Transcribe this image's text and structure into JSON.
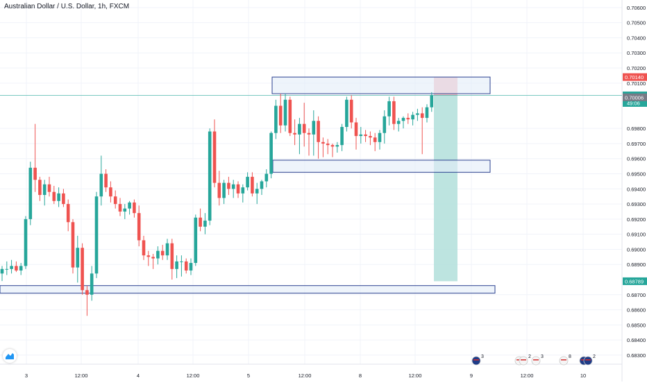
{
  "header": {
    "title": "Australian Dollar / U.S. Dollar, 1h, FXCM"
  },
  "colors": {
    "up": "#26a69a",
    "down": "#ef5350",
    "zone_fill": "#e3ecf9",
    "zone_stroke": "#2a3f8f",
    "target_fill": "#b2dfdb",
    "stop_fill": "#f4b6bb",
    "current_price_line": "#26a69a",
    "axis_text": "#131722"
  },
  "chart_data": {
    "type": "candlestick",
    "symbol": "AUDUSD",
    "interval": "1h",
    "x_tick_labels": [
      "3",
      "12:00",
      "4",
      "12:00",
      "5",
      "12:00",
      "8",
      "12:00",
      "9",
      "12:00",
      "10"
    ],
    "y_ticks": [
      "0.70600",
      "0.70500",
      "0.70400",
      "0.70300",
      "0.70200",
      "0.70100",
      "0.69800",
      "0.69700",
      "0.69600",
      "0.69500",
      "0.69400",
      "0.69300",
      "0.69200",
      "0.69100",
      "0.69000",
      "0.68900",
      "0.68700",
      "0.68600",
      "0.68500",
      "0.68400",
      "0.68300"
    ],
    "ylim": [
      0.6824,
      0.7065
    ],
    "price_labels": [
      {
        "value": 0.7014,
        "text": "0.70140",
        "color": "#ef5350"
      },
      {
        "value": 0.70019,
        "text": "0.70019",
        "color": "#26a69a",
        "sub": "49:06"
      },
      {
        "value": 0.70006,
        "text": "0.70006",
        "color": "#787b86"
      },
      {
        "value": 0.68789,
        "text": "0.68789",
        "color": "#26a69a"
      }
    ],
    "candles": [
      [
        0.6884,
        0.6889,
        0.6879,
        0.6887
      ],
      [
        0.6887,
        0.6892,
        0.6883,
        0.6887
      ],
      [
        0.6887,
        0.6893,
        0.6884,
        0.6889
      ],
      [
        0.6889,
        0.6892,
        0.6885,
        0.6886
      ],
      [
        0.6886,
        0.6891,
        0.6883,
        0.6889
      ],
      [
        0.6889,
        0.6922,
        0.6887,
        0.692
      ],
      [
        0.692,
        0.6958,
        0.6916,
        0.6954
      ],
      [
        0.6954,
        0.6983,
        0.6938,
        0.6946
      ],
      [
        0.6946,
        0.6948,
        0.6932,
        0.6936
      ],
      [
        0.6936,
        0.6946,
        0.6929,
        0.6943
      ],
      [
        0.6943,
        0.6948,
        0.6935,
        0.6938
      ],
      [
        0.6938,
        0.6942,
        0.693,
        0.6932
      ],
      [
        0.6932,
        0.6941,
        0.6928,
        0.6937
      ],
      [
        0.6937,
        0.694,
        0.6928,
        0.693
      ],
      [
        0.693,
        0.6933,
        0.6912,
        0.6918
      ],
      [
        0.6918,
        0.692,
        0.6884,
        0.6888
      ],
      [
        0.6888,
        0.6909,
        0.6878,
        0.6901
      ],
      [
        0.6901,
        0.6904,
        0.687,
        0.6873
      ],
      [
        0.6873,
        0.6876,
        0.6856,
        0.687
      ],
      [
        0.687,
        0.6889,
        0.6866,
        0.6884
      ],
      [
        0.6884,
        0.6938,
        0.6881,
        0.6935
      ],
      [
        0.6935,
        0.6962,
        0.6929,
        0.695
      ],
      [
        0.695,
        0.6953,
        0.6938,
        0.6941
      ],
      [
        0.6941,
        0.6945,
        0.6931,
        0.6935
      ],
      [
        0.6935,
        0.6939,
        0.6927,
        0.693
      ],
      [
        0.693,
        0.6934,
        0.6922,
        0.6925
      ],
      [
        0.6925,
        0.693,
        0.692,
        0.6927
      ],
      [
        0.6927,
        0.6932,
        0.6923,
        0.6931
      ],
      [
        0.6931,
        0.6933,
        0.6921,
        0.6924
      ],
      [
        0.6924,
        0.6929,
        0.6902,
        0.6906
      ],
      [
        0.6906,
        0.6909,
        0.6893,
        0.6896
      ],
      [
        0.6896,
        0.6899,
        0.6889,
        0.6895
      ],
      [
        0.6895,
        0.6897,
        0.6887,
        0.6894
      ],
      [
        0.6894,
        0.6902,
        0.689,
        0.6899
      ],
      [
        0.6899,
        0.6903,
        0.6893,
        0.6896
      ],
      [
        0.6896,
        0.6907,
        0.6893,
        0.6904
      ],
      [
        0.6904,
        0.6907,
        0.688,
        0.6887
      ],
      [
        0.6887,
        0.6896,
        0.6881,
        0.6892
      ],
      [
        0.6892,
        0.6896,
        0.6882,
        0.6892
      ],
      [
        0.6892,
        0.6894,
        0.6884,
        0.6886
      ],
      [
        0.6886,
        0.6894,
        0.6883,
        0.6891
      ],
      [
        0.6891,
        0.6923,
        0.6889,
        0.6921
      ],
      [
        0.6921,
        0.6927,
        0.6912,
        0.6915
      ],
      [
        0.6915,
        0.6924,
        0.691,
        0.6919
      ],
      [
        0.6919,
        0.698,
        0.6916,
        0.6978
      ],
      [
        0.6978,
        0.6986,
        0.6941,
        0.6944
      ],
      [
        0.6944,
        0.6952,
        0.6929,
        0.6934
      ],
      [
        0.6934,
        0.6946,
        0.693,
        0.6944
      ],
      [
        0.6944,
        0.6948,
        0.6936,
        0.694
      ],
      [
        0.694,
        0.6946,
        0.6934,
        0.6943
      ],
      [
        0.6943,
        0.6945,
        0.6934,
        0.6937
      ],
      [
        0.6937,
        0.6943,
        0.6931,
        0.6941
      ],
      [
        0.6941,
        0.6951,
        0.6939,
        0.6948
      ],
      [
        0.6948,
        0.6951,
        0.6935,
        0.6937
      ],
      [
        0.6937,
        0.6944,
        0.693,
        0.694
      ],
      [
        0.694,
        0.6946,
        0.6936,
        0.6945
      ],
      [
        0.6945,
        0.6953,
        0.6941,
        0.695
      ],
      [
        0.695,
        0.6978,
        0.6947,
        0.6977
      ],
      [
        0.6977,
        0.6999,
        0.6973,
        0.6995
      ],
      [
        0.6995,
        0.7003,
        0.6977,
        0.6982
      ],
      [
        0.6982,
        0.7003,
        0.6978,
        0.6999
      ],
      [
        0.6999,
        0.7001,
        0.6975,
        0.6977
      ],
      [
        0.6977,
        0.6986,
        0.6969,
        0.6976
      ],
      [
        0.6976,
        0.6987,
        0.6963,
        0.6983
      ],
      [
        0.6983,
        0.6997,
        0.6968,
        0.6977
      ],
      [
        0.6977,
        0.698,
        0.6962,
        0.6976
      ],
      [
        0.6976,
        0.6992,
        0.6962,
        0.6985
      ],
      [
        0.6985,
        0.6988,
        0.696,
        0.6971
      ],
      [
        0.6971,
        0.6974,
        0.6961,
        0.697
      ],
      [
        0.697,
        0.6973,
        0.6963,
        0.6969
      ],
      [
        0.6969,
        0.697,
        0.6961,
        0.6968
      ],
      [
        0.6968,
        0.6971,
        0.6964,
        0.6969
      ],
      [
        0.6969,
        0.6983,
        0.6965,
        0.6981
      ],
      [
        0.6981,
        0.7001,
        0.6978,
        0.6999
      ],
      [
        0.6999,
        0.7002,
        0.698,
        0.6984
      ],
      [
        0.6984,
        0.6987,
        0.6966,
        0.6975
      ],
      [
        0.6975,
        0.6981,
        0.697,
        0.6976
      ],
      [
        0.6976,
        0.6979,
        0.6971,
        0.6975
      ],
      [
        0.6975,
        0.6978,
        0.6969,
        0.6974
      ],
      [
        0.6974,
        0.6977,
        0.6965,
        0.6971
      ],
      [
        0.6971,
        0.6979,
        0.6966,
        0.6977
      ],
      [
        0.6977,
        0.6992,
        0.697,
        0.6988
      ],
      [
        0.6988,
        0.7001,
        0.6982,
        0.6998
      ],
      [
        0.6998,
        0.7001,
        0.6979,
        0.6983
      ],
      [
        0.6983,
        0.6987,
        0.6978,
        0.6985
      ],
      [
        0.6985,
        0.6988,
        0.698,
        0.6987
      ],
      [
        0.6987,
        0.699,
        0.6983,
        0.6986
      ],
      [
        0.6986,
        0.6991,
        0.6982,
        0.6989
      ],
      [
        0.6989,
        0.6993,
        0.6985,
        0.699
      ],
      [
        0.699,
        0.6994,
        0.6963,
        0.6987
      ],
      [
        0.6987,
        0.6996,
        0.6984,
        0.6994
      ],
      [
        0.6994,
        0.7004,
        0.6991,
        0.7002
      ]
    ],
    "zones": [
      {
        "name": "resistance zone",
        "from": 0.7003,
        "to": 0.7014
      },
      {
        "name": "support zone",
        "from": 0.6951,
        "to": 0.6959
      },
      {
        "name": "lower support zone",
        "from": 0.6871,
        "to": 0.6876
      }
    ],
    "position": {
      "type": "short",
      "entry": 0.70019,
      "stop": 0.7014,
      "target": 0.68789
    },
    "events": [
      {
        "label": "3",
        "flags": [
          "au"
        ]
      },
      {
        "label": "2",
        "flags": [
          "us",
          "us"
        ]
      },
      {
        "label": "3",
        "flags": [
          "us"
        ]
      },
      {
        "label": "8",
        "flags": [
          "us"
        ]
      },
      {
        "label": "2",
        "flags": [
          "au",
          "au"
        ]
      }
    ]
  }
}
